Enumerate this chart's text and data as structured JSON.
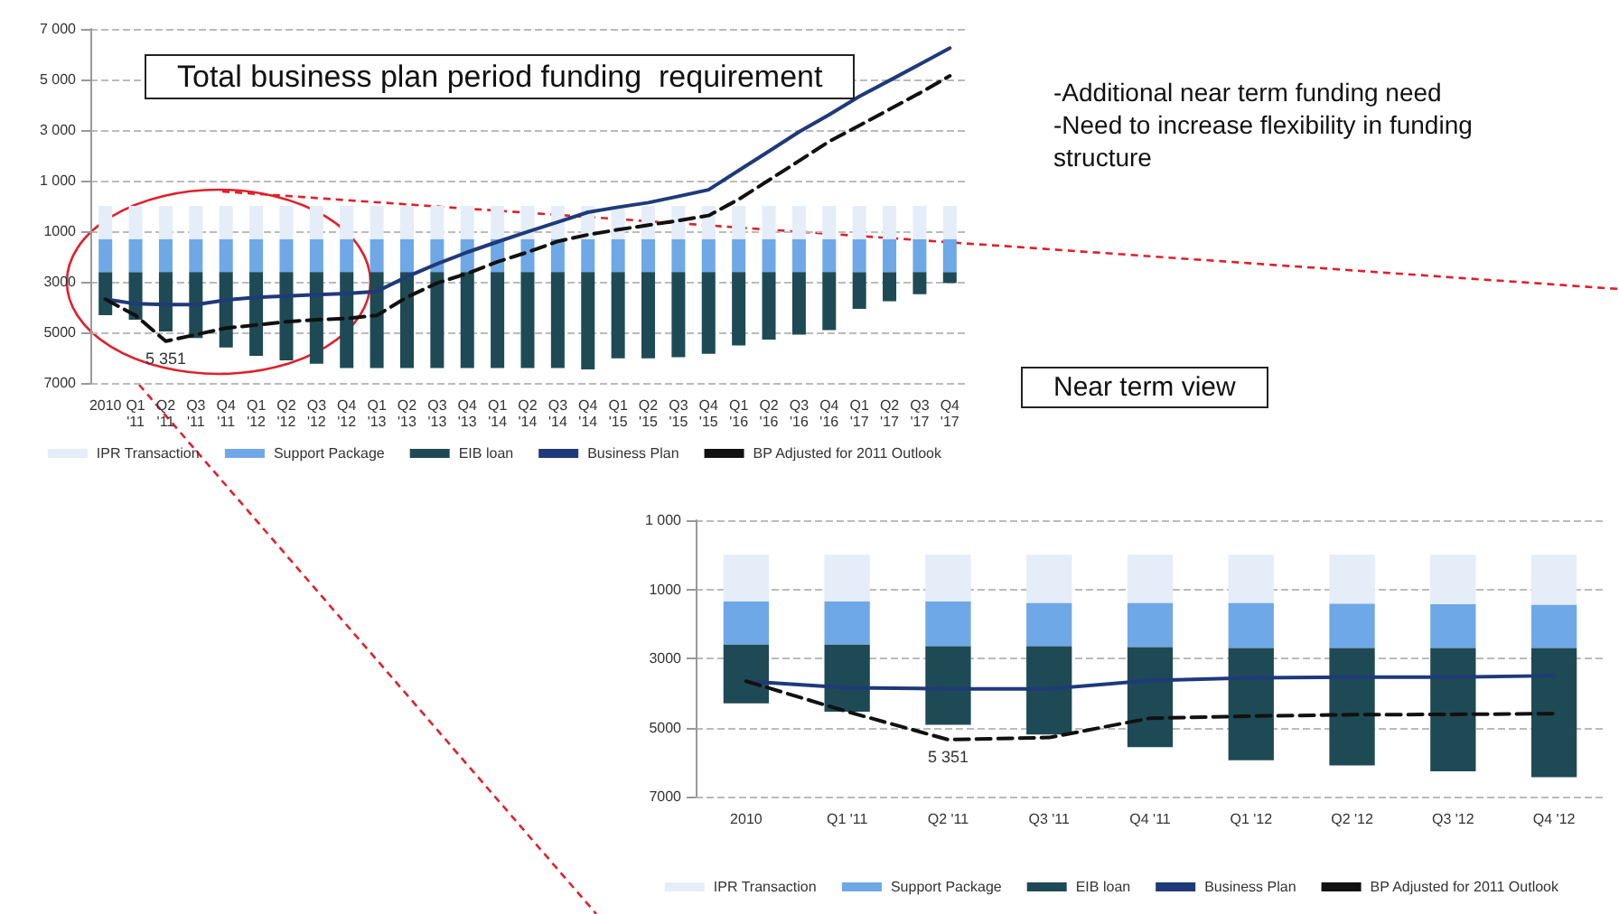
{
  "chart_data": [
    {
      "type": "bar",
      "title": "Total business plan period funding  requirement",
      "stacked": true,
      "legend": "bottom",
      "grid": "y",
      "marker": "none",
      "categories": [
        "2010",
        "Q1 '11",
        "Q2 '11",
        "Q3 '11",
        "Q4 '11",
        "Q1 '12",
        "Q2 '12",
        "Q3 '12",
        "Q4 '12",
        "Q1 '13",
        "Q2 '13",
        "Q3 '13",
        "Q4 '13",
        "Q1 '14",
        "Q2 '14",
        "Q3 '14",
        "Q4 '14",
        "Q1 '15",
        "Q2 '15",
        "Q3 '15",
        "Q4 '15",
        "Q1 '16",
        "Q2 '16",
        "Q3 '16",
        "Q4 '16",
        "Q1 '17",
        "Q2 '17",
        "Q3 '17",
        "Q4 '17"
      ],
      "ylim": [
        7000,
        -7000
      ],
      "yticks": [
        {
          "value": -7000,
          "label": "7 000"
        },
        {
          "value": -5000,
          "label": "5 000"
        },
        {
          "value": -3000,
          "label": "3 000"
        },
        {
          "value": -1000,
          "label": "1 000"
        },
        1000,
        3000,
        5000,
        7000
      ],
      "annotations": [
        "-Additional near term funding need",
        "-Need to increase flexibility in funding structure"
      ],
      "series": [
        {
          "name": "IPR Transaction",
          "type": "bar",
          "color": "#e4edf8",
          "values": [
            1320,
            1320,
            1320,
            1320,
            1320,
            1320,
            1320,
            1320,
            1320,
            1320,
            1320,
            1320,
            1320,
            1320,
            1320,
            1320,
            1320,
            1320,
            1320,
            1320,
            1320,
            1320,
            1320,
            1320,
            1320,
            1320,
            1320,
            1320,
            1320
          ]
        },
        {
          "name": "Support Package",
          "type": "bar",
          "color": "#6fa8e6",
          "values": [
            1300,
            1300,
            1300,
            1300,
            1300,
            1300,
            1300,
            1300,
            1300,
            1300,
            1300,
            1300,
            1300,
            1300,
            1300,
            1300,
            1300,
            1300,
            1300,
            1300,
            1300,
            1300,
            1300,
            1300,
            1300,
            1300,
            1300,
            1300,
            1300
          ]
        },
        {
          "name": "EIB loan",
          "type": "bar",
          "color": "#1e4a55",
          "values": [
            1700,
            1880,
            2340,
            2600,
            2980,
            3310,
            3490,
            3620,
            3790,
            3790,
            3790,
            3790,
            3790,
            3790,
            3790,
            3790,
            3840,
            3410,
            3410,
            3360,
            3230,
            2900,
            2670,
            2470,
            2290,
            1450,
            1150,
            870,
            430
          ]
        },
        {
          "name": "Business Plan",
          "type": "line",
          "color": "#1f3a7a",
          "line_style": "solid",
          "values": [
            3690,
            3870,
            3900,
            3900,
            3720,
            3620,
            3560,
            3510,
            3460,
            3380,
            2800,
            2290,
            1830,
            1420,
            1020,
            640,
            250,
            50,
            -130,
            -380,
            -640,
            -1400,
            -2160,
            -2930,
            -3610,
            -4330,
            -4960,
            -5600,
            -6240
          ]
        },
        {
          "name": "BP Adjusted for 2011 Outlook",
          "type": "line",
          "color": "#111111",
          "line_style": "dashed",
          "values": [
            3690,
            4330,
            5351,
            5090,
            4830,
            4710,
            4580,
            4500,
            4450,
            4330,
            3610,
            3050,
            2670,
            2210,
            1830,
            1400,
            1140,
            940,
            760,
            580,
            380,
            -260,
            -1020,
            -1780,
            -2550,
            -3180,
            -3820,
            -4460,
            -5140
          ],
          "value_labels": [
            null,
            null,
            "5 351",
            null,
            null,
            null,
            null,
            null,
            null,
            null,
            null,
            null,
            null,
            null,
            null,
            null,
            null,
            null,
            null,
            null,
            null,
            null,
            null,
            null,
            null,
            null,
            null,
            null,
            null
          ]
        }
      ]
    },
    {
      "type": "bar",
      "title": "Near term view",
      "stacked": true,
      "legend": "bottom",
      "grid": "y",
      "marker": "none",
      "categories": [
        "2010",
        "Q1 '11",
        "Q2 '11",
        "Q3 '11",
        "Q4 '11",
        "Q1 '12",
        "Q2 '12",
        "Q3 '12",
        "Q4 '12"
      ],
      "ylim": [
        7000,
        -1000
      ],
      "yticks": [
        {
          "value": -1000,
          "label": "1 000"
        },
        1000,
        3000,
        5000,
        7000
      ],
      "series": [
        {
          "name": "IPR Transaction",
          "type": "bar",
          "color": "#e4edf8",
          "values": [
            1350,
            1350,
            1350,
            1400,
            1400,
            1400,
            1420,
            1430,
            1450
          ]
        },
        {
          "name": "Support Package",
          "type": "bar",
          "color": "#6fa8e6",
          "values": [
            1250,
            1250,
            1300,
            1250,
            1270,
            1300,
            1280,
            1270,
            1250
          ]
        },
        {
          "name": "EIB loan",
          "type": "bar",
          "color": "#1e4a55",
          "values": [
            1700,
            1940,
            2270,
            2550,
            2900,
            3250,
            3400,
            3570,
            3740
          ]
        },
        {
          "name": "Business Plan",
          "type": "line",
          "color": "#1f3a7a",
          "line_style": "solid",
          "values": [
            3660,
            3850,
            3880,
            3880,
            3640,
            3560,
            3540,
            3540,
            3500
          ]
        },
        {
          "name": "BP Adjusted for 2011 Outlook",
          "type": "line",
          "color": "#111111",
          "line_style": "dashed",
          "values": [
            3660,
            4540,
            5351,
            5290,
            4730,
            4670,
            4630,
            4620,
            4600
          ],
          "value_labels": [
            null,
            null,
            "5 351",
            null,
            null,
            null,
            null,
            null,
            null
          ]
        }
      ]
    }
  ]
}
